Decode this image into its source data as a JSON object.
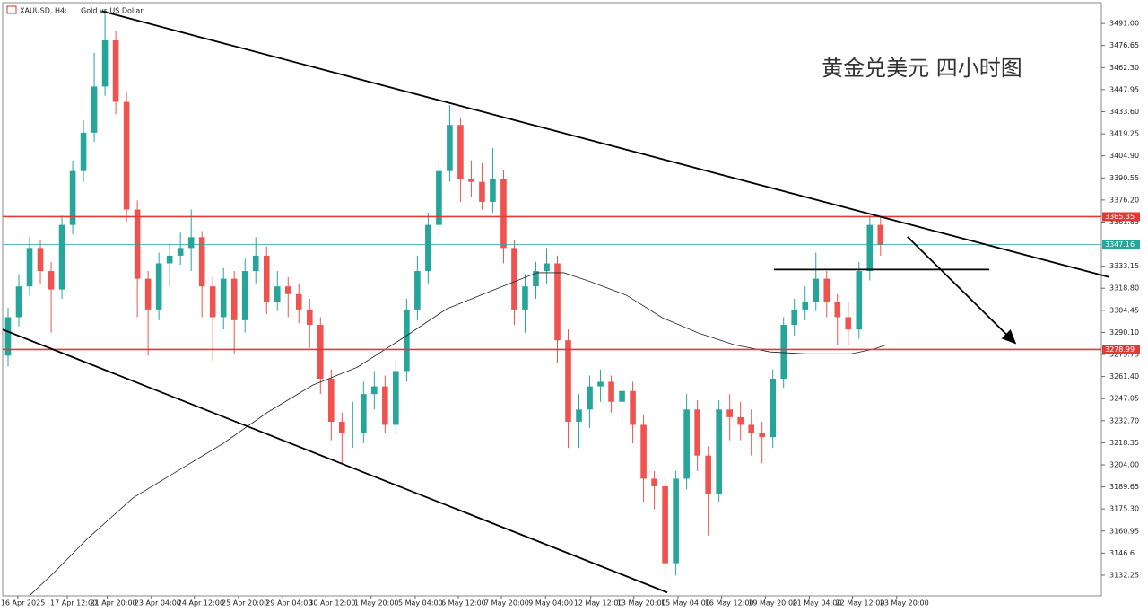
{
  "chart_data": {
    "type": "candlestick",
    "symbol": "XAUUSD, H4:",
    "description": "Gold vs US Dollar",
    "title": "黄金兑美元 四小时图",
    "up_color": "#26a69a",
    "down_color": "#ef5350",
    "open": [
      3275,
      3300,
      3320,
      3345,
      3330,
      3318,
      3360,
      3395,
      3420,
      3450,
      3480,
      3440,
      3370,
      3325,
      3305,
      3335,
      3340,
      3345,
      3352,
      3320,
      3300,
      3325,
      3298,
      3330,
      3340,
      3310,
      3320,
      3315,
      3305,
      3295,
      3260,
      3232,
      3225,
      3225,
      3250,
      3255,
      3230,
      3265,
      3305,
      3330,
      3360,
      3395,
      3425,
      3390,
      3388,
      3375,
      3390,
      3345,
      3305,
      3320,
      3330,
      3335,
      3285,
      3232,
      3240,
      3255,
      3258,
      3245,
      3252,
      3230,
      3195,
      3190,
      3140,
      3195,
      3240,
      3210,
      3185,
      3240,
      3235,
      3230,
      3225,
      3222,
      3260,
      3295,
      3305,
      3310,
      3325,
      3310,
      3300,
      3292,
      3330,
      3360
    ],
    "high": [
      3306,
      3328,
      3352,
      3350,
      3336,
      3366,
      3402,
      3428,
      3472,
      3500,
      3486,
      3446,
      3376,
      3330,
      3342,
      3348,
      3355,
      3370,
      3356,
      3326,
      3332,
      3330,
      3338,
      3352,
      3346,
      3330,
      3326,
      3322,
      3312,
      3300,
      3266,
      3238,
      3245,
      3258,
      3265,
      3262,
      3272,
      3312,
      3340,
      3368,
      3402,
      3438,
      3430,
      3402,
      3400,
      3410,
      3396,
      3350,
      3328,
      3336,
      3345,
      3340,
      3292,
      3250,
      3262,
      3266,
      3262,
      3260,
      3258,
      3236,
      3200,
      3196,
      3200,
      3250,
      3246,
      3216,
      3246,
      3250,
      3245,
      3240,
      3232,
      3266,
      3300,
      3312,
      3320,
      3342,
      3330,
      3315,
      3310,
      3336,
      3366,
      3365.35
    ],
    "low": [
      3268,
      3294,
      3314,
      3322,
      3290,
      3312,
      3354,
      3388,
      3414,
      3444,
      3432,
      3362,
      3300,
      3275,
      3298,
      3320,
      3334,
      3330,
      3300,
      3272,
      3292,
      3276,
      3290,
      3322,
      3302,
      3304,
      3300,
      3296,
      3280,
      3250,
      3220,
      3205,
      3215,
      3218,
      3240,
      3225,
      3224,
      3258,
      3298,
      3322,
      3352,
      3388,
      3375,
      3378,
      3370,
      3368,
      3335,
      3295,
      3290,
      3312,
      3322,
      3270,
      3215,
      3215,
      3228,
      3245,
      3238,
      3230,
      3218,
      3180,
      3175,
      3130,
      3132,
      3188,
      3200,
      3158,
      3180,
      3220,
      3220,
      3210,
      3205,
      3215,
      3254,
      3288,
      3298,
      3304,
      3300,
      3282,
      3282,
      3286,
      3324,
      3340
    ],
    "close": [
      3300,
      3320,
      3345,
      3330,
      3318,
      3360,
      3395,
      3420,
      3450,
      3480,
      3440,
      3370,
      3325,
      3305,
      3335,
      3340,
      3345,
      3352,
      3320,
      3300,
      3325,
      3298,
      3330,
      3340,
      3310,
      3320,
      3315,
      3305,
      3295,
      3260,
      3232,
      3225,
      3225,
      3250,
      3255,
      3230,
      3265,
      3305,
      3330,
      3360,
      3395,
      3425,
      3390,
      3388,
      3375,
      3390,
      3345,
      3305,
      3320,
      3330,
      3335,
      3285,
      3232,
      3240,
      3255,
      3258,
      3245,
      3252,
      3230,
      3195,
      3190,
      3140,
      3195,
      3240,
      3210,
      3185,
      3240,
      3235,
      3230,
      3225,
      3222,
      3260,
      3295,
      3305,
      3310,
      3325,
      3310,
      3300,
      3292,
      3330,
      3360,
      3347.16
    ],
    "xlim": [
      0,
      102
    ],
    "xticks": [
      {
        "value": 1.4,
        "label": "16 Apr 2025"
      },
      {
        "value": 6,
        "label": "17 Apr 12:00"
      },
      {
        "value": 9.7,
        "label": "21 Apr 20:00"
      },
      {
        "value": 13.8,
        "label": "23 Apr 04:00"
      },
      {
        "value": 17.8,
        "label": "24 Apr 12:00"
      },
      {
        "value": 21.9,
        "label": "25 Apr 20:00"
      },
      {
        "value": 26,
        "label": "29 Apr 04:00"
      },
      {
        "value": 30,
        "label": "30 Apr 12:00"
      },
      {
        "value": 34.2,
        "label": "1 May 20:00"
      },
      {
        "value": 38.3,
        "label": "5 May 04:00"
      },
      {
        "value": 42.3,
        "label": "6 May 12:00"
      },
      {
        "value": 46.3,
        "label": "7 May 20:00"
      },
      {
        "value": 50.4,
        "label": "9 May 04:00"
      },
      {
        "value": 54.6,
        "label": "12 May 12:00"
      },
      {
        "value": 58.6,
        "label": "13 May 20:00"
      },
      {
        "value": 62.7,
        "label": "15 May 04:00"
      },
      {
        "value": 66.75,
        "label": "16 May 12:00"
      },
      {
        "value": 70.8,
        "label": "19 May 20:00"
      },
      {
        "value": 74.9,
        "label": "21 May 04:00"
      },
      {
        "value": 78.9,
        "label": "22 May 12:00"
      },
      {
        "value": 83,
        "label": "23 May 20:00"
      }
    ],
    "ylim": [
      3118.8,
      3504.5
    ],
    "yticks": [
      {
        "value": 3491,
        "label": "3491.00"
      },
      3476.65,
      {
        "value": 3462.3,
        "label": "3462.30"
      },
      3447.95,
      {
        "value": 3433.6,
        "label": "3433.60"
      },
      3419.25,
      {
        "value": 3404.9,
        "label": "3404.90"
      },
      3390.55,
      {
        "value": 3376.2,
        "label": "3376.20"
      },
      3361.85,
      3333.15,
      {
        "value": 3318.8,
        "label": "3318.80"
      },
      3304.45,
      {
        "value": 3290.1,
        "label": "3290.10"
      },
      3275.75,
      {
        "value": 3261.4,
        "label": "3261.40"
      },
      3247.05,
      {
        "value": 3232.7,
        "label": "3232.70"
      },
      3218.35,
      {
        "value": 3204,
        "label": "3204.00"
      },
      3189.65,
      {
        "value": 3175.3,
        "label": "3175.30"
      },
      3160.95,
      3146.6,
      3132.25
    ],
    "price_lines": [
      {
        "value": 3365.35,
        "color": "#e53935"
      },
      {
        "value": 3347.16,
        "color": "#26a69a"
      },
      {
        "value": 3278.99,
        "color": "#e53935"
      }
    ],
    "trendlines": [
      {
        "x": [
          9.2,
          102.75
        ],
        "y": [
          3499,
          3326
        ]
      },
      {
        "x": [
          0,
          61.7
        ],
        "y": [
          3292,
          3121
        ]
      },
      {
        "x": [
          71.6,
          91.6
        ],
        "y": [
          3331,
          3331
        ]
      }
    ],
    "arrow": {
      "x": [
        84,
        94
      ],
      "y": [
        3352.3,
        3283.2
      ]
    },
    "ma": {
      "color": "#222",
      "x": [
        2.5,
        4.6,
        7.9,
        12.1,
        16.25,
        20.4,
        24.6,
        28.75,
        32.9,
        37.1,
        41.25,
        45.4,
        49.6,
        52.1,
        54.6,
        57.9,
        61.25,
        64.6,
        67.9,
        71.25,
        74.6,
        78.75,
        80.8,
        82.1
      ],
      "values": [
        3119,
        3132.8,
        3156.2,
        3182.5,
        3200.1,
        3217.6,
        3238.2,
        3255.7,
        3267.4,
        3286.2,
        3305.5,
        3317.2,
        3328.9,
        3328.9,
        3323,
        3314.3,
        3299.6,
        3289.7,
        3282.1,
        3277.4,
        3276.2,
        3276.2,
        3279.1,
        3282.1
      ]
    }
  }
}
